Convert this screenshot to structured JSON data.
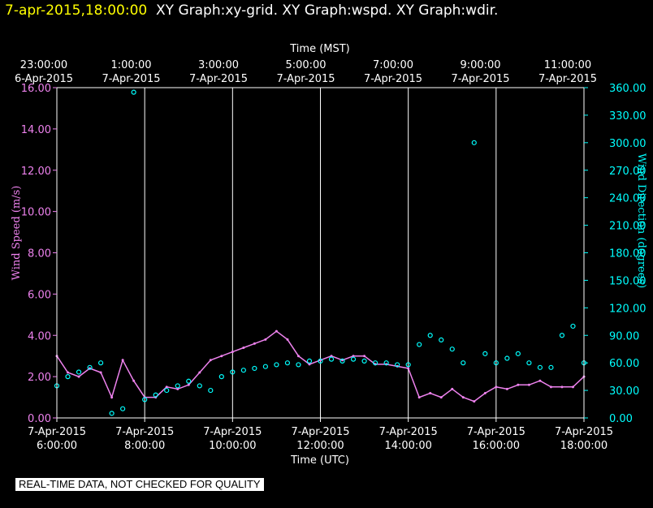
{
  "header": {
    "timestamp": "7-apr-2015,18:00:00",
    "graphs": "XY Graph:xy-grid.  XY Graph:wspd.  XY Graph:wdir."
  },
  "footer": {
    "note": "REAL-TIME DATA, NOT CHECKED FOR QUALITY"
  },
  "colors": {
    "wind_speed": "#ee82ee",
    "wind_direction": "#00ffff",
    "timestamp": "#ffff00",
    "grid": "#ffffff"
  },
  "chart_data": {
    "type": "scatter",
    "title": "",
    "top_axis": {
      "label": "Time (MST)",
      "ticks": [
        {
          "time": "23:00:00",
          "date": "6-Apr-2015"
        },
        {
          "time": "1:00:00",
          "date": "7-Apr-2015"
        },
        {
          "time": "3:00:00",
          "date": "7-Apr-2015"
        },
        {
          "time": "5:00:00",
          "date": "7-Apr-2015"
        },
        {
          "time": "7:00:00",
          "date": "7-Apr-2015"
        },
        {
          "time": "9:00:00",
          "date": "7-Apr-2015"
        },
        {
          "time": "11:00:00",
          "date": "7-Apr-2015"
        }
      ]
    },
    "bottom_axis": {
      "label": "Time (UTC)",
      "ticks": [
        {
          "time": "6:00:00",
          "date": "7-Apr-2015"
        },
        {
          "time": "8:00:00",
          "date": "7-Apr-2015"
        },
        {
          "time": "10:00:00",
          "date": "7-Apr-2015"
        },
        {
          "time": "12:00:00",
          "date": "7-Apr-2015"
        },
        {
          "time": "14:00:00",
          "date": "7-Apr-2015"
        },
        {
          "time": "16:00:00",
          "date": "7-Apr-2015"
        },
        {
          "time": "18:00:00",
          "date": "7-Apr-2015"
        }
      ],
      "xlim_utc_hours": [
        6,
        18
      ]
    },
    "left_axis": {
      "label": "Wind Speed (m/s)",
      "ylim": [
        0,
        16
      ],
      "ticks": [
        "0.00",
        "2.00",
        "4.00",
        "6.00",
        "8.00",
        "10.00",
        "12.00",
        "14.00",
        "16.00"
      ]
    },
    "right_axis": {
      "label": "Wind Direction (degrees)",
      "ylim": [
        0,
        360
      ],
      "ticks": [
        "0.00",
        "30.00",
        "60.00",
        "90.00",
        "120.00",
        "150.00",
        "180.00",
        "210.00",
        "240.00",
        "270.00",
        "300.00",
        "330.00",
        "360.00"
      ]
    },
    "grid": "vertical lines at bottom ticks",
    "series": [
      {
        "name": "Wind Speed",
        "axis": "left",
        "style": "line",
        "x_utc_hours": [
          6.0,
          6.25,
          6.5,
          6.75,
          7.0,
          7.25,
          7.5,
          7.75,
          8.0,
          8.25,
          8.5,
          8.75,
          9.0,
          9.25,
          9.5,
          9.75,
          10.0,
          10.25,
          10.5,
          10.75,
          11.0,
          11.25,
          11.5,
          11.75,
          12.0,
          12.25,
          12.5,
          12.75,
          13.0,
          13.25,
          13.5,
          13.75,
          14.0,
          14.25,
          14.5,
          14.75,
          15.0,
          15.25,
          15.5,
          15.75,
          16.0,
          16.25,
          16.5,
          16.75,
          17.0,
          17.25,
          17.5,
          17.75,
          18.0
        ],
        "y": [
          3.0,
          2.2,
          2.0,
          2.4,
          2.2,
          1.0,
          2.8,
          1.8,
          1.0,
          1.0,
          1.5,
          1.4,
          1.6,
          2.2,
          2.8,
          3.0,
          3.2,
          3.4,
          3.6,
          3.8,
          4.2,
          3.8,
          3.0,
          2.6,
          2.8,
          3.0,
          2.8,
          3.0,
          3.0,
          2.6,
          2.6,
          2.5,
          2.4,
          1.0,
          1.2,
          1.0,
          1.4,
          1.0,
          0.8,
          1.2,
          1.5,
          1.4,
          1.6,
          1.6,
          1.8,
          1.5,
          1.5,
          1.5,
          2.0
        ]
      },
      {
        "name": "Wind Direction",
        "axis": "right",
        "style": "points",
        "x_utc_hours": [
          6.0,
          6.25,
          6.5,
          6.75,
          7.0,
          7.25,
          7.5,
          7.75,
          8.0,
          8.25,
          8.5,
          8.75,
          9.0,
          9.25,
          9.5,
          9.75,
          10.0,
          10.25,
          10.5,
          10.75,
          11.0,
          11.25,
          11.5,
          11.75,
          12.0,
          12.25,
          12.5,
          12.75,
          13.0,
          13.25,
          13.5,
          13.75,
          14.0,
          14.25,
          14.5,
          14.75,
          15.0,
          15.25,
          15.5,
          15.75,
          16.0,
          16.25,
          16.5,
          16.75,
          17.0,
          17.25,
          17.5,
          17.75,
          18.0
        ],
        "y": [
          35,
          45,
          50,
          55,
          60,
          5,
          10,
          355,
          20,
          25,
          30,
          35,
          40,
          35,
          30,
          45,
          50,
          52,
          54,
          56,
          58,
          60,
          58,
          62,
          62,
          64,
          62,
          64,
          62,
          60,
          60,
          58,
          58,
          80,
          90,
          85,
          75,
          60,
          300,
          70,
          60,
          65,
          70,
          60,
          55,
          55,
          90,
          100,
          60
        ]
      }
    ]
  }
}
